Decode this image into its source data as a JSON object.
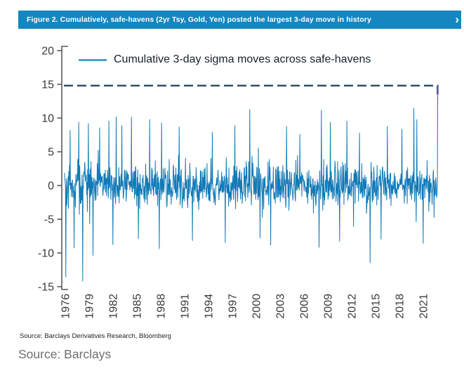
{
  "header": {
    "title": "Figure 2. Cumulatively, safe-havens (2yr Tsy, Gold, Yen) posted the largest 3-day move in history",
    "chevron": "›",
    "bg_color": "#1487c1"
  },
  "legend": {
    "label": "Cumulative 3-day sigma moves across safe-havens",
    "line_color": "#4ba0cd"
  },
  "footer": {
    "source_small": "Source: Barclays Derivatives Research, Bloomberg",
    "source_large": "Source: Barclays"
  },
  "chart_data": {
    "type": "line",
    "title": "Figure 2. Cumulatively, safe-havens (2yr Tsy, Gold, Yen) posted the largest 3-day move in history",
    "legend_entries": [
      "Cumulative 3-day sigma moves across safe-havens"
    ],
    "legend_position": "top-left",
    "grid": false,
    "xlim": [
      1975.8,
      2023.0
    ],
    "ylim": [
      -15.4,
      20.6
    ],
    "x_ticks": [
      1976,
      1979,
      1982,
      1985,
      1988,
      1991,
      1994,
      1997,
      2000,
      2003,
      2006,
      2009,
      2012,
      2015,
      2018,
      2021
    ],
    "y_ticks": [
      -15,
      -10,
      -5,
      0,
      5,
      10,
      15,
      20
    ],
    "series_color": "#117ab7",
    "axis_color": "#58595b",
    "tick_label_color": "#3a3a3a",
    "reference_line": {
      "value": 14.8,
      "style": "dashed",
      "color": "#2c4f66"
    },
    "series": [
      {
        "name": "Cumulative 3-day sigma moves across safe-havens",
        "points_per_year": 24,
        "typical_range": [
          -3,
          3
        ],
        "seed": 42,
        "extremes": [
          [
            1976.05,
            -13.6
          ],
          [
            1976.6,
            8.2
          ],
          [
            1977.1,
            -9.3
          ],
          [
            1977.7,
            9.4
          ],
          [
            1978.2,
            -14.2
          ],
          [
            1978.9,
            9.2
          ],
          [
            1979.5,
            -10.4
          ],
          [
            1980.3,
            8.6
          ],
          [
            1981.5,
            9.6
          ],
          [
            1982.0,
            -8.8
          ],
          [
            1982.4,
            10.2
          ],
          [
            1983.1,
            8.9
          ],
          [
            1984.3,
            10.2
          ],
          [
            1985.2,
            -7.9
          ],
          [
            1986.6,
            9.8
          ],
          [
            1987.8,
            -9.4
          ],
          [
            1988.1,
            9.3
          ],
          [
            1990.3,
            8.7
          ],
          [
            1992.0,
            -8.2
          ],
          [
            1994.5,
            7.9
          ],
          [
            1996.1,
            -8.5
          ],
          [
            1997.3,
            8.9
          ],
          [
            1999.2,
            11.3
          ],
          [
            2000.5,
            -7.8
          ],
          [
            2001.8,
            -8.9
          ],
          [
            2003.8,
            8.8
          ],
          [
            2005.5,
            7.6
          ],
          [
            2007.9,
            -9.2
          ],
          [
            2008.2,
            11.2
          ],
          [
            2009.3,
            9.4
          ],
          [
            2010.5,
            -8.3
          ],
          [
            2011.4,
            9.6
          ],
          [
            2013.0,
            7.8
          ],
          [
            2014.3,
            -11.5
          ],
          [
            2015.7,
            -8.0
          ],
          [
            2016.5,
            8.8
          ],
          [
            2018.3,
            8.4
          ],
          [
            2019.8,
            11.5
          ],
          [
            2020.2,
            9.8
          ],
          [
            2021.0,
            -8.6
          ],
          [
            2022.8,
            14.8
          ]
        ]
      }
    ]
  }
}
